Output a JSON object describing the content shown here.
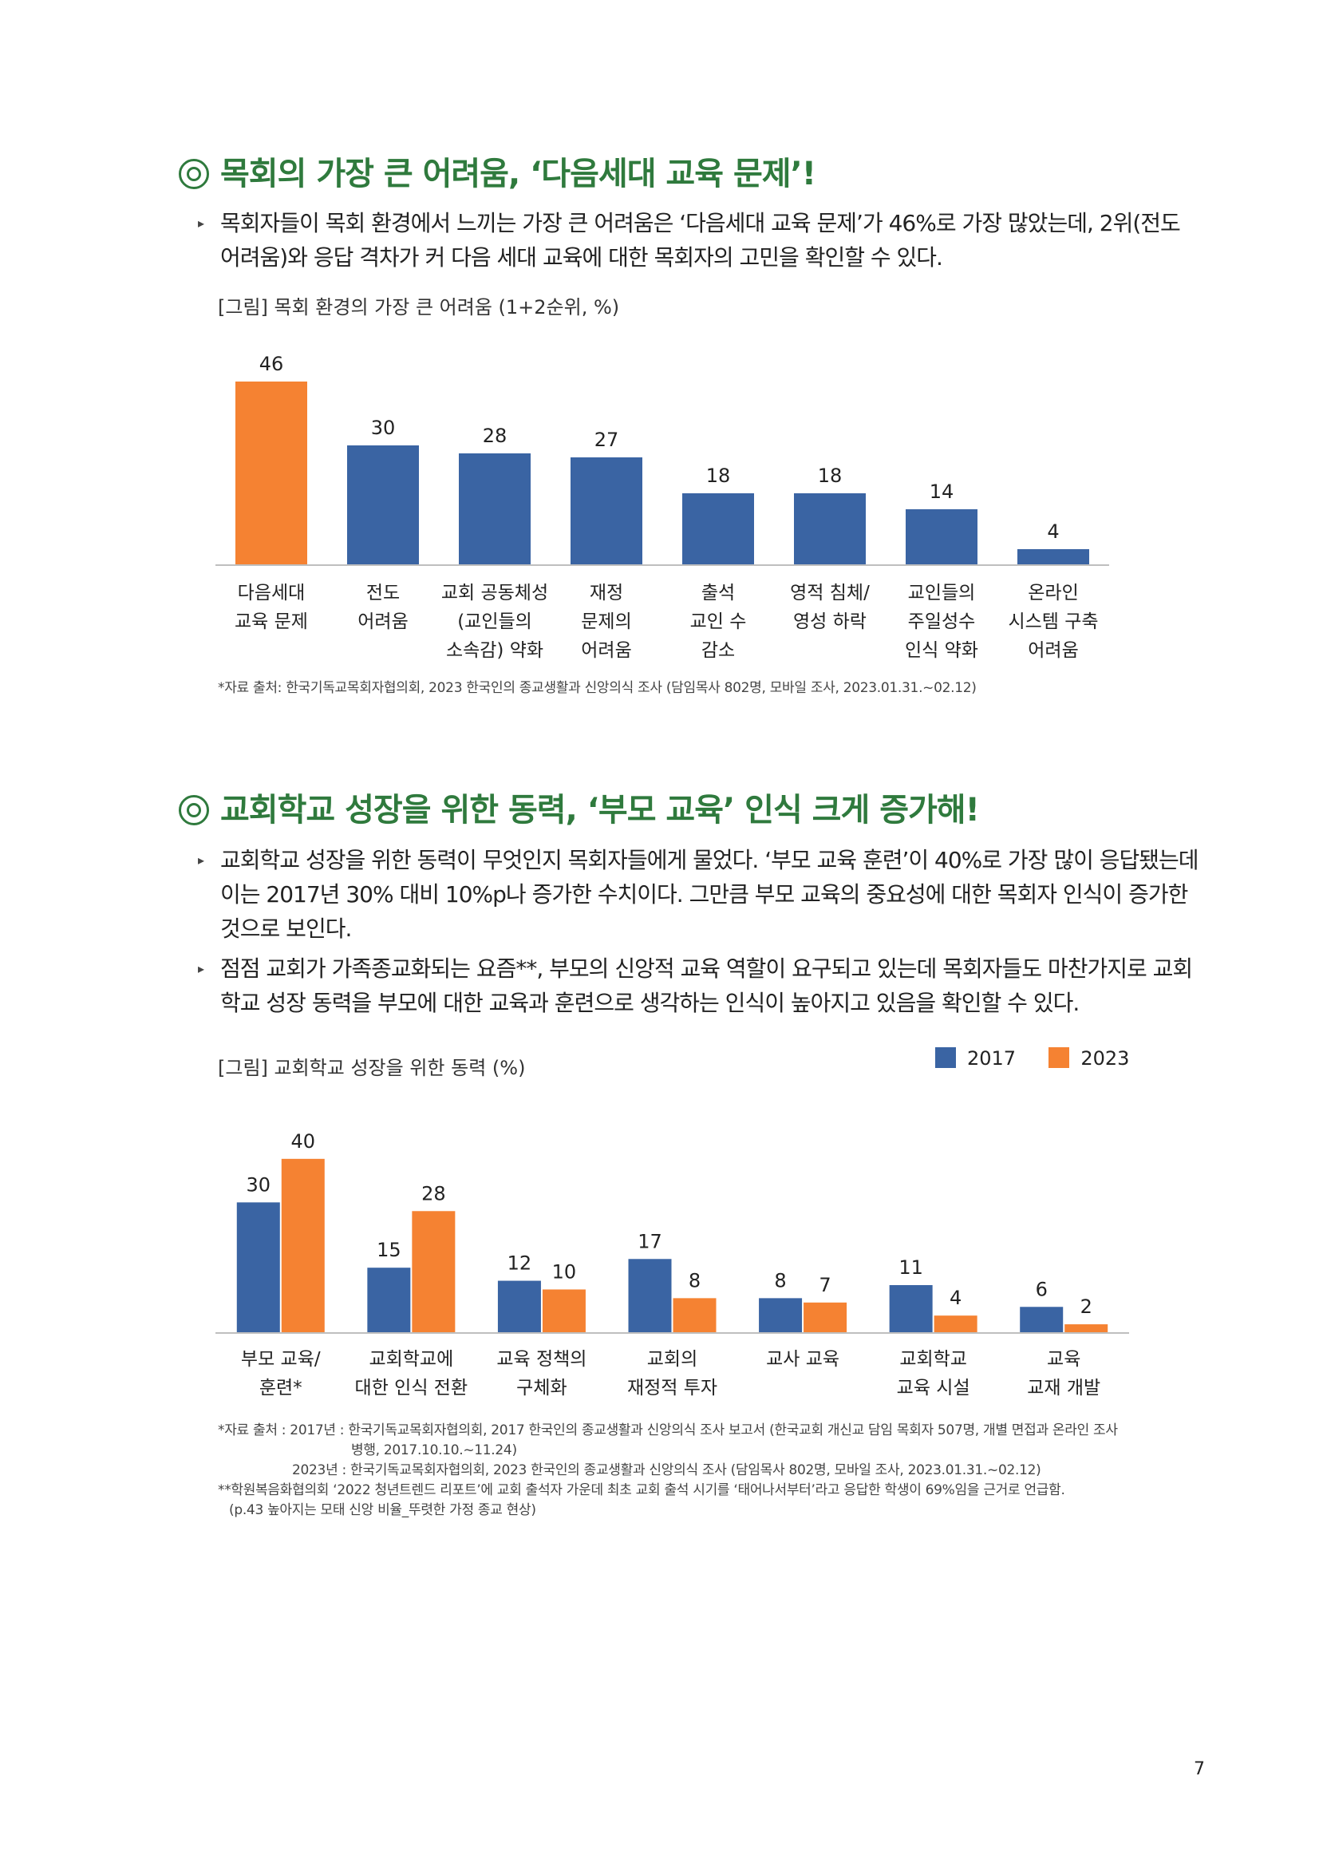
{
  "section1": {
    "heading": "목회의 가장 큰 어려움, ‘다음세대 교육 문제’!",
    "paragraph": "목회자들이 목회 환경에서 느끼는 가장 큰 어려움은 ‘다음세대 교육 문제’가 46%로 가장 많았는데, 2위(전도 어려움)와 응답 격차가 커 다음 세대 교육에 대한 목회자의 고민을 확인할 수 있다.",
    "figure_caption": "[그림] 목회 환경의 가장 큰 어려움 (1+2순위, %)",
    "source": "*자료 출처: 한국기독교목회자협의회, 2023 한국인의 종교생활과 신앙의식 조사 (담임목사 802명, 모바일 조사, 2023.01.31.~02.12)"
  },
  "section2": {
    "heading": "교회학교 성장을 위한 동력, ‘부모 교육’ 인식 크게 증가해!",
    "paragraph1": "교회학교 성장을 위한 동력이 무엇인지 목회자들에게 물었다. ‘부모 교육 훈련’이 40%로 가장 많이 응답됐는데 이는 2017년 30% 대비 10%p나 증가한 수치이다. 그만큼 부모 교육의 중요성에 대한 목회자 인식이 증가한 것으로 보인다.",
    "paragraph2": "점점 교회가 가족종교화되는 요즘**, 부모의 신앙적 교육 역할이 요구되고 있는데 목회자들도 마찬가지로 교회학교 성장 동력을 부모에 대한 교육과 훈련으로 생각하는 인식이 높아지고 있음을 확인할 수 있다.",
    "figure_caption": "[그림] 교회학교 성장을 위한 동력 (%)",
    "source_lines": [
      "*자료 출처 : 2017년 : 한국기독교목회자협의회, 2017 한국인의 종교생활과 신앙의식 조사 보고서 (한국교회 개신교 담임 목회자 507명, 개별 면접과 온라인 조사",
      "병행, 2017.10.10.~11.24)",
      "2023년 : 한국기독교목회자협의회, 2023 한국인의 종교생활과 신앙의식 조사 (담임목사 802명, 모바일 조사, 2023.01.31.~02.12)",
      "**학원복음화협의회 ‘2022 청년트렌드 리포트’에 교회 출석자 가운데 최초 교회 출석 시기를 ‘태어나서부터’라고 응답한 학생이 69%임을 근거로 언급함.",
      "(p.43 높아지는 모태 신앙 비율_뚜렷한 가정 종교 현상)"
    ]
  },
  "page_number": "7",
  "colors": {
    "heading_green": "#2f7a3d",
    "bar_blue": "#3a64a3",
    "bar_orange": "#f58232",
    "axis": "#bfbfbf"
  },
  "chart_data": [
    {
      "type": "bar",
      "title": "[그림] 목회 환경의 가장 큰 어려움 (1+2순위, %)",
      "categories": [
        [
          "다음세대",
          "교육 문제"
        ],
        [
          "전도",
          "어려움"
        ],
        [
          "교회 공동체성",
          "(교인들의",
          "소속감) 약화"
        ],
        [
          "재정",
          "문제의",
          "어려움"
        ],
        [
          "출석",
          "교인 수",
          "감소"
        ],
        [
          "영적 침체/",
          "영성 하락"
        ],
        [
          "교인들의",
          "주일성수",
          "인식 약화"
        ],
        [
          "온라인",
          "시스템 구축",
          "어려움"
        ]
      ],
      "values": [
        46,
        30,
        28,
        27,
        18,
        18,
        14,
        4
      ],
      "highlight_index": 0,
      "ylim": [
        0,
        50
      ],
      "grid": false
    },
    {
      "type": "bar",
      "title": "[그림] 교회학교 성장을 위한 동력 (%)",
      "categories": [
        [
          "부모 교육/",
          "훈련*"
        ],
        [
          "교회학교에",
          "대한 인식 전환"
        ],
        [
          "교육 정책의",
          "구체화"
        ],
        [
          "교회의",
          "재정적 투자"
        ],
        [
          "교사 교육"
        ],
        [
          "교회학교",
          "교육 시설"
        ],
        [
          "교육",
          "교재 개발"
        ]
      ],
      "series": [
        {
          "name": "2017",
          "values": [
            30,
            15,
            12,
            17,
            8,
            11,
            6
          ]
        },
        {
          "name": "2023",
          "values": [
            40,
            28,
            10,
            8,
            7,
            4,
            2
          ]
        }
      ],
      "ylim": [
        0,
        44
      ],
      "legend": "top-right",
      "grid": false
    }
  ]
}
